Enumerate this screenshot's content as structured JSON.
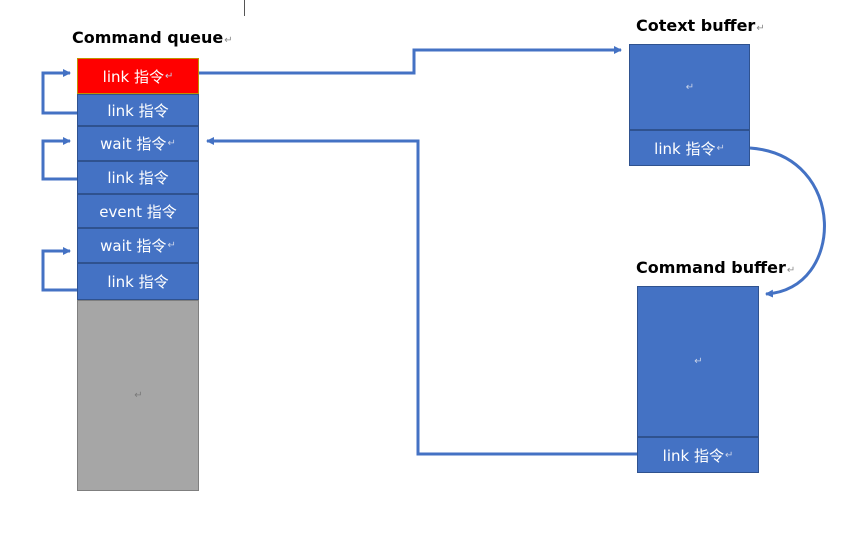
{
  "para_mark": "↵",
  "queue": {
    "title": "Command queue",
    "items": [
      {
        "label": "link 指令",
        "state": "active"
      },
      {
        "label": "link 指令",
        "state": "normal"
      },
      {
        "label": "wait 指令",
        "state": "normal"
      },
      {
        "label": "link 指令",
        "state": "normal"
      },
      {
        "label": "event 指令",
        "state": "normal"
      },
      {
        "label": "wait 指令",
        "state": "normal"
      },
      {
        "label": "link 指令",
        "state": "normal"
      }
    ]
  },
  "context_buffer": {
    "title": "Cotext buffer",
    "link_label": "link 指令"
  },
  "command_buffer": {
    "title": "Command buffer",
    "link_label": "link 指令"
  },
  "colors": {
    "block_blue": "#4472c4",
    "active_red": "#ff0000",
    "empty_gray": "#a6a6a6",
    "arrow_blue": "#4472c4"
  }
}
